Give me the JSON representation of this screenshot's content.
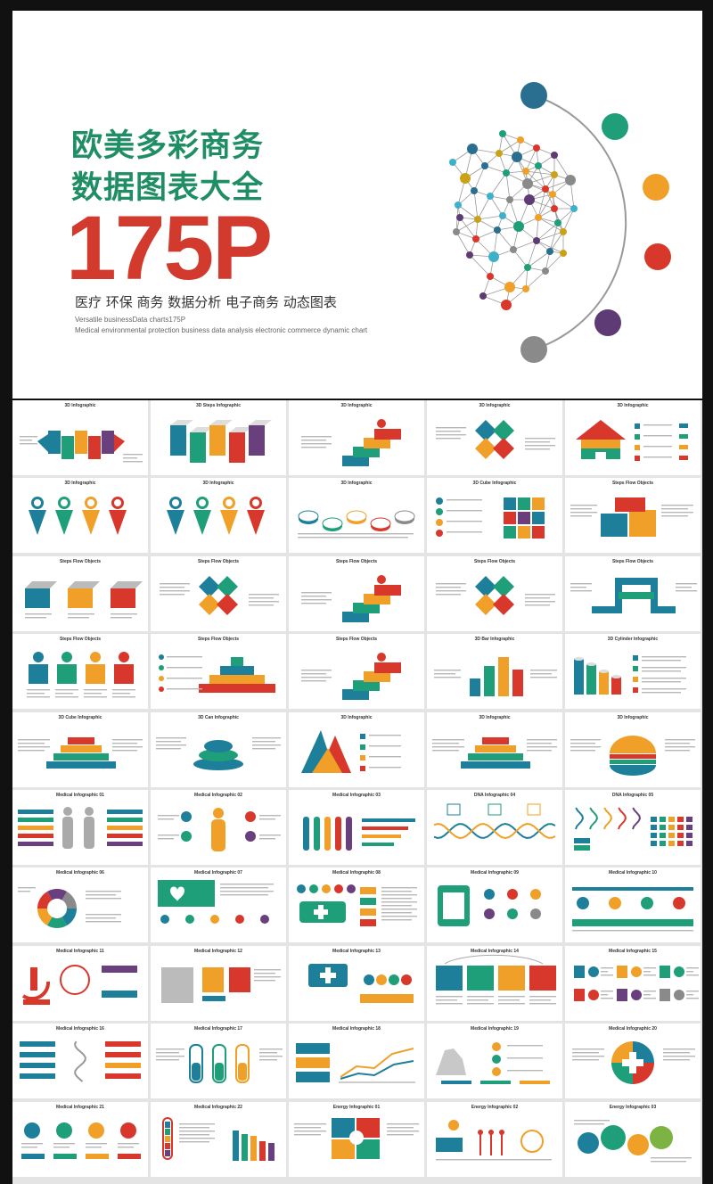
{
  "hero": {
    "title_line1": "欧美多彩商务",
    "title_line2": "数据图表大全",
    "count": "175P",
    "subtitle": "医疗 环保 商务 数据分析 电子商务 动态图表",
    "english_line1": "Versatile businessData charts175P",
    "english_line2": "Medical environmental protection business data analysis electronic commerce dynamic chart",
    "node_colors": [
      "#2a6f8f",
      "#1f9e7a",
      "#f0a028",
      "#d8382c",
      "#5e3b74",
      "#8a8a8a"
    ]
  },
  "thumbnails": [
    {
      "title": "3D Infographic",
      "art": "arrows3d"
    },
    {
      "title": "3D Steps Infographic",
      "art": "steps3d"
    },
    {
      "title": "3D Infographic",
      "art": "stack3d"
    },
    {
      "title": "3D Infographic",
      "art": "diamonds"
    },
    {
      "title": "3D Infographic",
      "art": "house"
    },
    {
      "title": "3D Infographic",
      "art": "cones"
    },
    {
      "title": "3D Infographic",
      "art": "cones"
    },
    {
      "title": "3D Infographic",
      "art": "pucks"
    },
    {
      "title": "3D Cube Infographic",
      "art": "cubegrid"
    },
    {
      "title": "Steps Flow Objects",
      "art": "blocks"
    },
    {
      "title": "Steps Flow Objects",
      "art": "boxes"
    },
    {
      "title": "Steps Flow Objects",
      "art": "diamonds"
    },
    {
      "title": "Steps Flow Objects",
      "art": "stack3d"
    },
    {
      "title": "Steps Flow Objects",
      "art": "diamonds"
    },
    {
      "title": "Steps Flow Objects",
      "art": "zigzag"
    },
    {
      "title": "Steps Flow Objects",
      "art": "cubes4"
    },
    {
      "title": "Steps Flow Objects",
      "art": "stairs"
    },
    {
      "title": "Steps Flow Objects",
      "art": "stack3d"
    },
    {
      "title": "3D Bar Infographic",
      "art": "bars3d"
    },
    {
      "title": "3D Cylinder Infographic",
      "art": "cylinders"
    },
    {
      "title": "3D Cube Infographic",
      "art": "pyramid"
    },
    {
      "title": "3D Can Infographic",
      "art": "cake"
    },
    {
      "title": "3D Infographic",
      "art": "triangles"
    },
    {
      "title": "3D Infographic",
      "art": "pyramid"
    },
    {
      "title": "3D Infographic",
      "art": "burger"
    },
    {
      "title": "Medical Infographic 01",
      "art": "bodies"
    },
    {
      "title": "Medical Infographic 02",
      "art": "body"
    },
    {
      "title": "Medical Infographic 03",
      "art": "tubes"
    },
    {
      "title": "DNA Infographic 04",
      "art": "dna"
    },
    {
      "title": "DNA Infographic 05",
      "art": "dnabars"
    },
    {
      "title": "Medical Infographic 06",
      "art": "ring"
    },
    {
      "title": "Medical Infographic 07",
      "art": "heartcard"
    },
    {
      "title": "Medical Infographic 08",
      "art": "ambulance"
    },
    {
      "title": "Medical Infographic 09",
      "art": "clipboard"
    },
    {
      "title": "Medical Infographic 10",
      "art": "timeline"
    },
    {
      "title": "Medical Infographic 11",
      "art": "microscope"
    },
    {
      "title": "Medical Infographic 12",
      "art": "hospital"
    },
    {
      "title": "Medical Infographic 13",
      "art": "kit"
    },
    {
      "title": "Medical Infographic 14",
      "art": "cards4"
    },
    {
      "title": "Medical Infographic 15",
      "art": "numbers"
    },
    {
      "title": "Medical Infographic 16",
      "art": "dnalines"
    },
    {
      "title": "Medical Infographic 17",
      "art": "flasks"
    },
    {
      "title": "Medical Infographic 18",
      "art": "linechart"
    },
    {
      "title": "Medical Infographic 19",
      "art": "hand"
    },
    {
      "title": "Medical Infographic 20",
      "art": "cross"
    },
    {
      "title": "Medical Infographic 21",
      "art": "circles4"
    },
    {
      "title": "Medical Infographic 22",
      "art": "thermo"
    },
    {
      "title": "Energy Infographic 01",
      "art": "energy"
    },
    {
      "title": "Energy Infographic 02",
      "art": "solar"
    },
    {
      "title": "Energy Infographic 03",
      "art": "bubbles"
    }
  ]
}
